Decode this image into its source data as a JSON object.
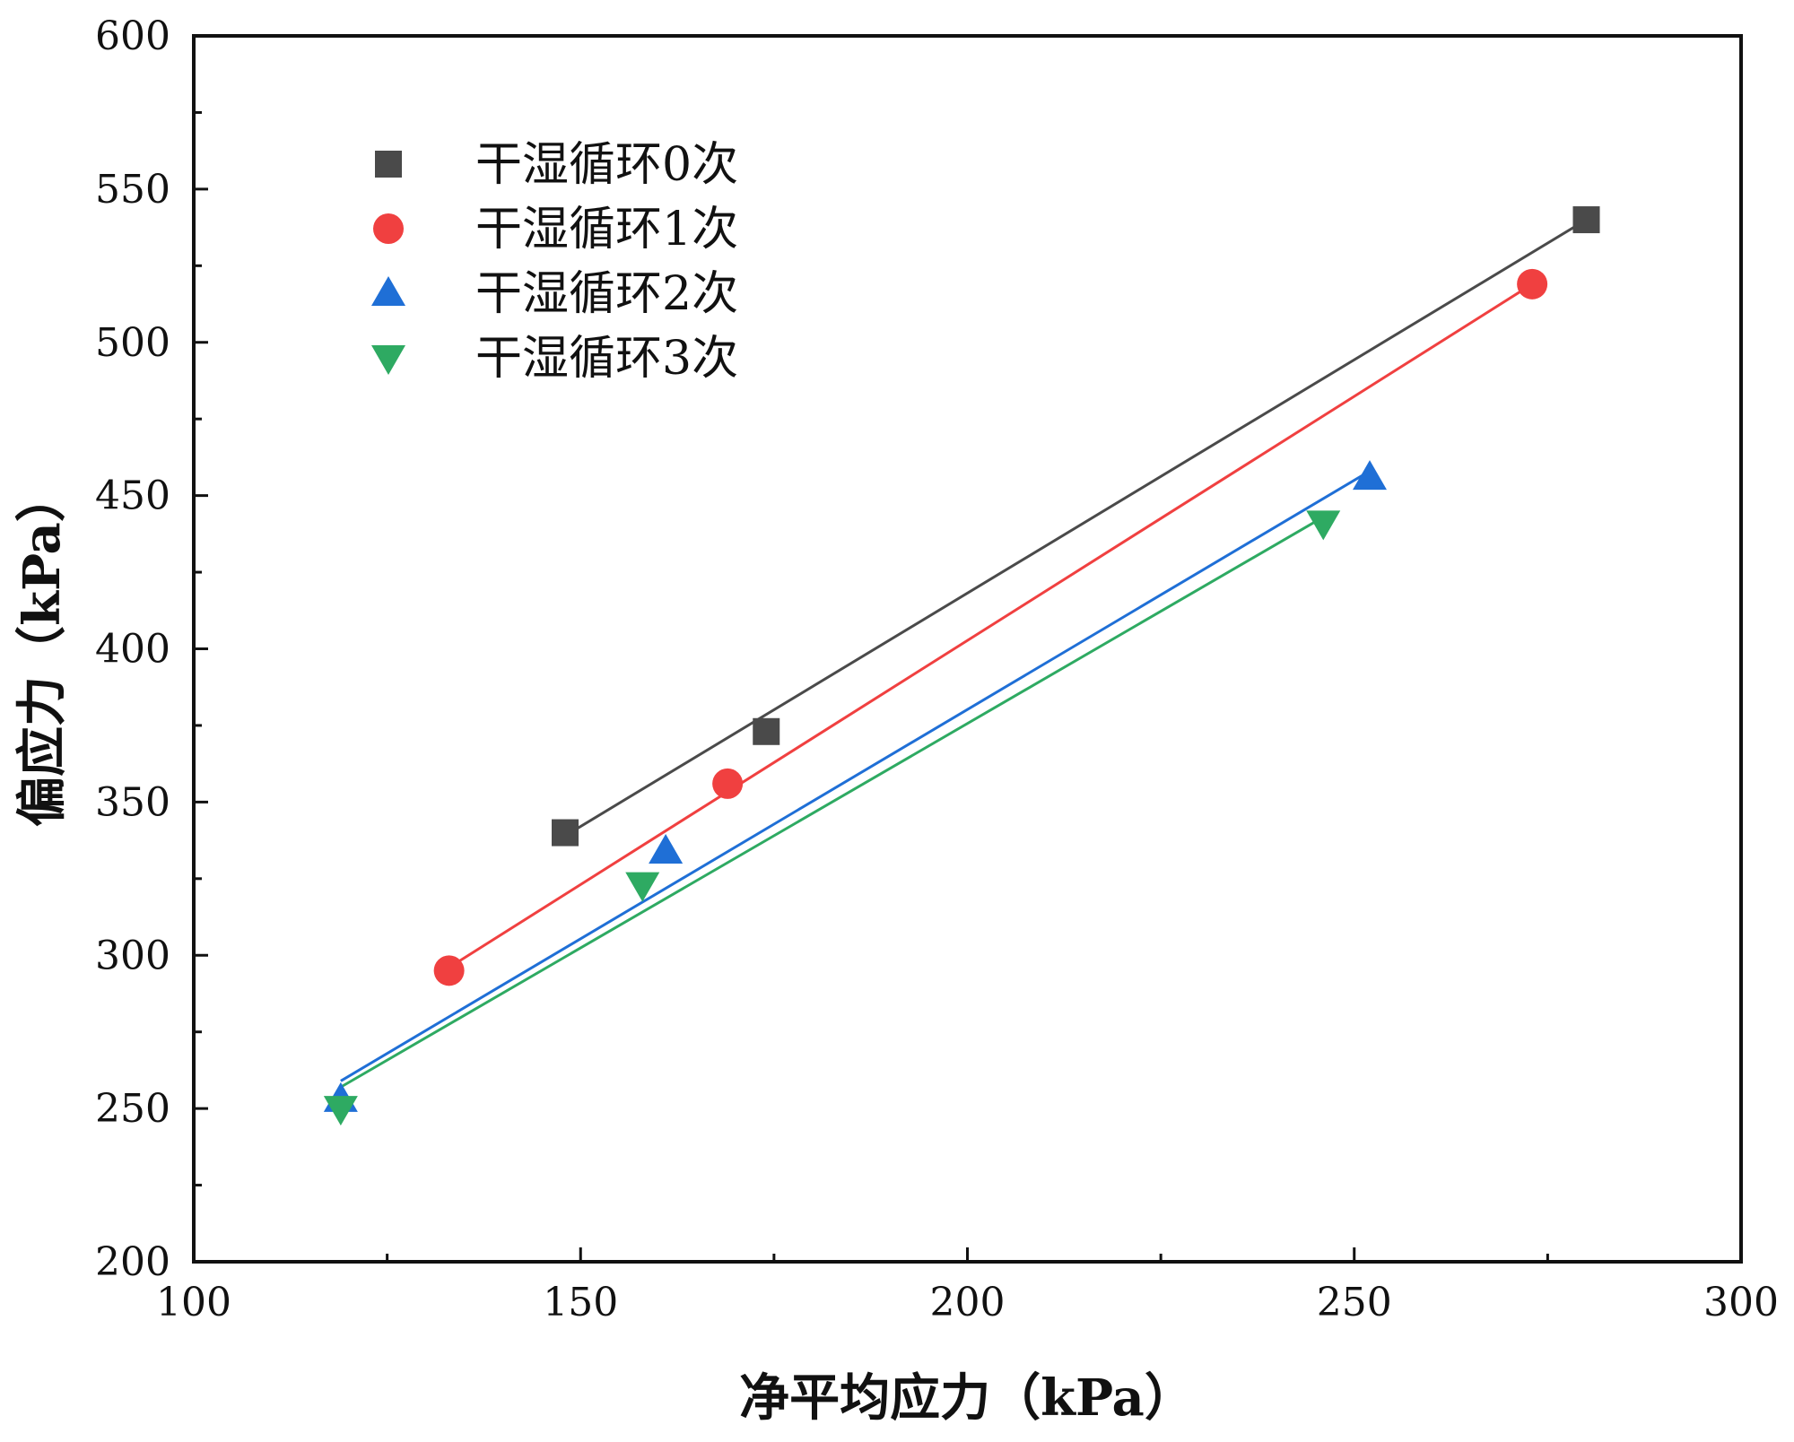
{
  "chart_data": {
    "type": "scatter",
    "xlabel": "净平均应力（kPa）",
    "ylabel": "偏应力（kPa）",
    "xlim": [
      100,
      300
    ],
    "ylim": [
      200,
      600
    ],
    "x_ticks": [
      "100",
      "150",
      "200",
      "250",
      "300"
    ],
    "y_ticks": [
      "200",
      "250",
      "300",
      "350",
      "400",
      "450",
      "500",
      "550",
      "600"
    ],
    "grid": false,
    "legend_position": "top-left",
    "series": [
      {
        "name": "干湿循环0次",
        "marker": "square",
        "color": "#4a4a4a",
        "points": [
          [
            148,
            340
          ],
          [
            174,
            373
          ],
          [
            280,
            540
          ]
        ],
        "fit_line": [
          [
            148,
            339
          ],
          [
            280,
            540
          ]
        ]
      },
      {
        "name": "干湿循环1次",
        "marker": "circle",
        "color": "#f04040",
        "points": [
          [
            133,
            295
          ],
          [
            169,
            356
          ],
          [
            273,
            519
          ]
        ],
        "fit_line": [
          [
            133,
            296
          ],
          [
            273,
            519
          ]
        ]
      },
      {
        "name": "干湿循环2次",
        "marker": "triangle-up",
        "color": "#1f6fd6",
        "points": [
          [
            119,
            253
          ],
          [
            161,
            334
          ],
          [
            252,
            456
          ]
        ],
        "fit_line": [
          [
            119,
            259
          ],
          [
            252,
            458
          ]
        ]
      },
      {
        "name": "干湿循环3次",
        "marker": "triangle-down",
        "color": "#2eaa62",
        "points": [
          [
            119,
            250
          ],
          [
            158,
            323
          ],
          [
            246,
            441
          ]
        ],
        "fit_line": [
          [
            119,
            257
          ],
          [
            246,
            443
          ]
        ]
      }
    ]
  }
}
